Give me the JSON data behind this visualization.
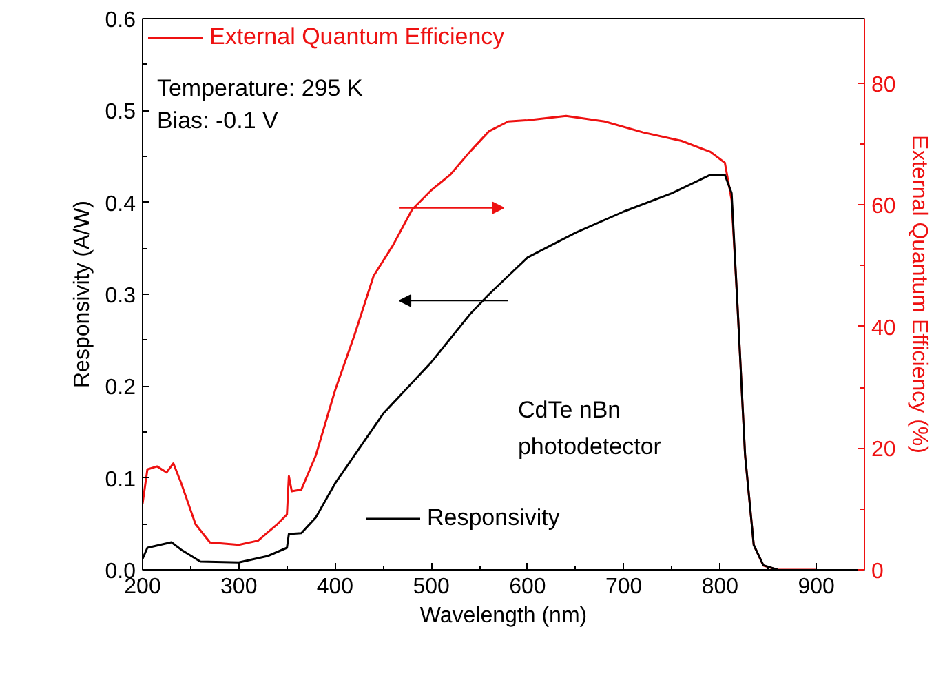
{
  "chart_data": {
    "type": "line",
    "xlabel": "Wavelength (nm)",
    "ylabel": "Responsivity (A/W)",
    "y2label": "External Quantum Efficiency (%)",
    "xlim": [
      200,
      950
    ],
    "xticks": [
      200,
      300,
      400,
      500,
      600,
      700,
      800,
      900
    ],
    "ylim": [
      0,
      0.6
    ],
    "yticks": [
      {
        "value": 0,
        "label": "0.0"
      },
      0.1,
      0.2,
      0.3,
      0.4,
      0.5,
      0.6
    ],
    "y2lim": [
      0,
      90.6
    ],
    "y2ticks": [
      0,
      20,
      40,
      60,
      80
    ],
    "legend": "top left",
    "grid": false,
    "marker": "none",
    "line_style": "solid",
    "annotations": [
      "Temperature: 295 K",
      "Bias: -0.1 V",
      "CdTe nBn\nphotodetector"
    ],
    "series": [
      {
        "name": "External Quantum Efficiency",
        "color": "#ee1111",
        "axis": "y2",
        "x": [
          200,
          205,
          215,
          225,
          232,
          240,
          255,
          270,
          300,
          320,
          340,
          350,
          352,
          355,
          365,
          380,
          400,
          420,
          440,
          460,
          480,
          500,
          520,
          540,
          560,
          580,
          600,
          640,
          680,
          720,
          760,
          790,
          805,
          812,
          818,
          826,
          835,
          845,
          860,
          900
        ],
        "values": [
          10.9,
          16.5,
          17,
          16,
          17.5,
          14.3,
          7.5,
          4.5,
          4.1,
          4.8,
          7.5,
          9.1,
          15.4,
          12.9,
          13.2,
          18.8,
          29.5,
          38.5,
          48.3,
          53.3,
          59.2,
          62.4,
          65,
          68.7,
          72.1,
          73.7,
          73.9,
          74.6,
          73.7,
          71.9,
          70.5,
          68.7,
          66.9,
          60.8,
          43.8,
          18.8,
          4.1,
          0.7,
          0,
          0
        ]
      },
      {
        "name": "Responsivity",
        "color": "#000000",
        "x": [
          200,
          205,
          230,
          240,
          260,
          300,
          330,
          350,
          352,
          365,
          380,
          400,
          450,
          500,
          540,
          560,
          600,
          650,
          700,
          750,
          790,
          805,
          812,
          818,
          826,
          835,
          845,
          860
        ],
        "values": [
          0.012,
          0.024,
          0.03,
          0.022,
          0.009,
          0.008,
          0.015,
          0.024,
          0.039,
          0.04,
          0.057,
          0.094,
          0.17,
          0.226,
          0.278,
          0.3,
          0.34,
          0.367,
          0.39,
          0.41,
          0.43,
          0.43,
          0.41,
          0.29,
          0.125,
          0.027,
          0.005,
          0
        ]
      }
    ]
  }
}
